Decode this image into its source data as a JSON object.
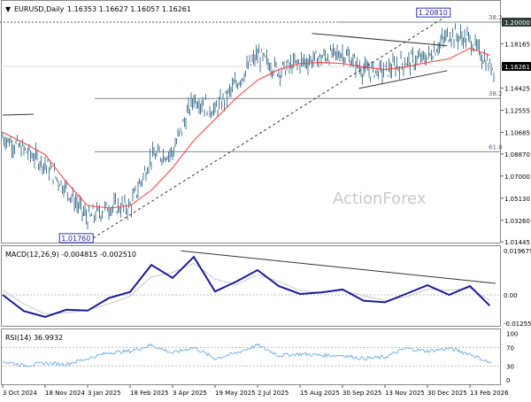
{
  "header": {
    "symbol": "EURUSD,Daily",
    "ohlc": "1.16353 1.16627 1.16057 1.16261"
  },
  "watermark": "ActionForex",
  "colors": {
    "price": "#4a7a96",
    "ma": "#ff3b3b",
    "macd": "#1a1a9c",
    "signal": "#c8c8c8",
    "rsi": "#5aa3e8",
    "trend": "#333333",
    "fib": "#7a8a8a"
  },
  "chart_data": [
    {
      "type": "line",
      "panel": "price",
      "title": "EURUSD,Daily",
      "x": [
        "2024-10-03",
        "2024-10-26",
        "2024-11-18",
        "2024-12-11",
        "2025-01-03",
        "2025-01-26",
        "2025-02-18",
        "2025-03-12",
        "2025-04-03",
        "2025-04-26",
        "2025-05-19",
        "2025-06-10",
        "2025-07-02",
        "2025-07-24",
        "2025-08-15",
        "2025-09-07",
        "2025-09-30",
        "2025-10-22",
        "2025-11-13",
        "2025-12-06",
        "2025-12-30",
        "2026-01-22",
        "2026-02-13",
        "2026-03-06"
      ],
      "series": [
        {
          "values": [
            1.103,
            1.092,
            1.08,
            1.059,
            1.034,
            1.044,
            1.044,
            1.086,
            1.09,
            1.136,
            1.125,
            1.148,
            1.172,
            1.159,
            1.166,
            1.17,
            1.174,
            1.159,
            1.159,
            1.166,
            1.17,
            1.19,
            1.185,
            1.1626
          ],
          "kind": "ohlc-bars"
        },
        {
          "values": [
            1.107,
            1.098,
            1.088,
            1.065,
            1.045,
            1.043,
            1.045,
            1.058,
            1.077,
            1.1,
            1.118,
            1.136,
            1.151,
            1.16,
            1.165,
            1.166,
            1.165,
            1.162,
            1.16,
            1.162,
            1.166,
            1.169,
            1.178,
            1.172
          ],
          "kind": "moving-average"
        }
      ],
      "ylim": [
        1.01445,
        1.2081
      ],
      "y_ticks": [
        "1.20000",
        "1.18165",
        "1.16261",
        "1.14425",
        "1.12555",
        "1.10685",
        "1.08870",
        "1.07000",
        "1.05130",
        "1.03260",
        "1.01445"
      ],
      "y_tick_values": [
        1.2,
        1.18165,
        1.16261,
        1.14425,
        1.12555,
        1.10685,
        1.0887,
        1.07,
        1.0513,
        1.0326,
        1.01445
      ],
      "current_price": "1.16261",
      "fib_levels": [
        {
          "label": "38.2",
          "price": 1.2
        },
        {
          "label": "38.2",
          "price": 1.1355
        },
        {
          "label": "61.8",
          "price": 1.0905
        }
      ],
      "annotations": [
        {
          "label": "1.20810",
          "date": "2026-01-25",
          "price": 1.2081
        },
        {
          "label": "1.01760",
          "date": "2025-01-09",
          "price": 1.0176
        }
      ],
      "trendlines": [
        {
          "style": "dashed",
          "from": [
            "2025-01-09",
            1.0176
          ],
          "to": [
            "2026-01-25",
            1.2081
          ]
        },
        {
          "style": "solid",
          "from": [
            "2025-08-28",
            1.1905
          ],
          "to": [
            "2026-01-20",
            1.18
          ]
        },
        {
          "style": "solid",
          "from": [
            "2025-10-17",
            1.144
          ],
          "to": [
            "2026-01-20",
            1.159
          ]
        }
      ],
      "grid": false
    },
    {
      "type": "line",
      "panel": "macd",
      "title": "MACD(12,26,9) -0.004815 -0.002510",
      "series": [
        {
          "name": "MACD",
          "values": [
            0.0,
            -0.0072,
            -0.0098,
            -0.0066,
            -0.007,
            -0.0014,
            0.0013,
            0.0133,
            0.0075,
            0.0169,
            0.0015,
            0.0059,
            0.011,
            0.0039,
            0.0004,
            0.0011,
            0.0024,
            -0.0026,
            -0.0033,
            0.0004,
            0.0043,
            0.0,
            0.0039,
            -0.004815
          ]
        },
        {
          "name": "Signal",
          "values": [
            0.002,
            -0.004,
            -0.0085,
            -0.008,
            -0.0068,
            -0.004,
            -0.0005,
            0.008,
            0.01,
            0.014,
            0.007,
            0.0045,
            0.009,
            0.006,
            0.002,
            0.001,
            0.002,
            -0.0005,
            -0.0025,
            -0.001,
            0.0025,
            0.002,
            0.003,
            -0.00251
          ]
        }
      ],
      "ylim": [
        -0.012552,
        0.019679
      ],
      "y_ticks": [
        "0.019679",
        "0.00",
        "-0.012552"
      ],
      "y_tick_values": [
        0.019679,
        0,
        -0.012552
      ],
      "trendlines": [
        {
          "style": "solid",
          "from": [
            "2025-04-12",
            0.0196
          ],
          "to": [
            "2026-03-12",
            0.0051
          ]
        }
      ]
    },
    {
      "type": "line",
      "panel": "rsi",
      "title": "RSI(14) 36.9932",
      "series": [
        {
          "name": "RSI",
          "values": [
            40,
            31,
            36,
            34,
            46,
            59,
            62,
            75,
            58,
            70,
            46,
            58,
            75,
            53,
            56,
            53,
            53,
            46,
            49,
            68,
            62,
            68,
            56,
            37
          ]
        }
      ],
      "ylim": [
        0,
        100
      ],
      "y_ticks": [
        "100",
        "70",
        "30",
        "0"
      ],
      "y_tick_values": [
        100,
        70,
        30,
        0
      ],
      "levels": [
        70,
        30
      ]
    }
  ],
  "x_axis": {
    "tick_labels": [
      "3 Oct 2024",
      "18 Nov 2024",
      "3 Jan 2025",
      "18 Feb 2025",
      "3 Apr 2025",
      "19 May 2025",
      "2 Jul 2025",
      "15 Aug 2025",
      "30 Sep 2025",
      "13 Nov 2025",
      "30 Dec 2025",
      "13 Feb 2026"
    ],
    "tick_dates": [
      "2024-10-03",
      "2024-11-18",
      "2025-01-03",
      "2025-02-18",
      "2025-04-03",
      "2025-05-19",
      "2025-07-02",
      "2025-08-15",
      "2025-09-30",
      "2025-11-13",
      "2025-12-30",
      "2026-02-13"
    ]
  }
}
